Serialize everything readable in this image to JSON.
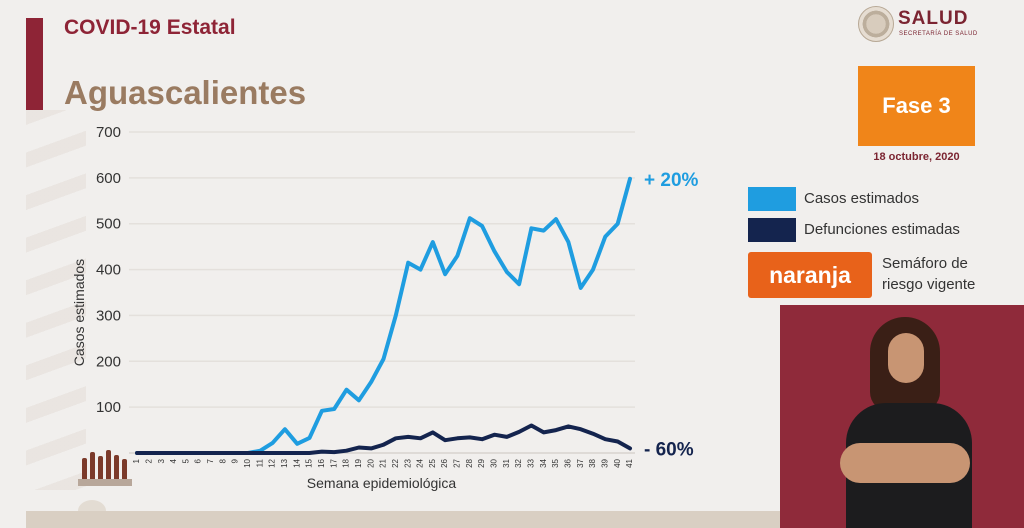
{
  "header": {
    "title": "COVID-19 Estatal",
    "state": "Aguascalientes"
  },
  "logo": {
    "name": "SALUD",
    "subtitle": "SECRETARÍA DE SALUD"
  },
  "phase": {
    "label": "Fase 3",
    "date": "18 octubre, 2020",
    "color": "#f08519"
  },
  "legend": {
    "cases_label": "Casos estimados",
    "deaths_label": "Defunciones estimadas",
    "semaforo_color_label": "naranja",
    "semaforo_text_line1": "Semáforo de",
    "semaforo_text_line2": "riesgo vigente",
    "cases_color": "#1f9de0",
    "deaths_color": "#14244e",
    "semaforo_color": "#e8621a"
  },
  "chart_data": {
    "type": "line",
    "xlabel": "Semana epidemiológica",
    "ylabel": "Casos estimados",
    "ylim": [
      0,
      700
    ],
    "yticks": [
      100,
      200,
      300,
      400,
      500,
      600,
      700
    ],
    "x": [
      1,
      2,
      3,
      4,
      5,
      6,
      7,
      8,
      9,
      10,
      11,
      12,
      13,
      14,
      15,
      16,
      17,
      18,
      19,
      20,
      21,
      22,
      23,
      24,
      25,
      26,
      27,
      28,
      29,
      30,
      31,
      32,
      33,
      34,
      35,
      36,
      37,
      38,
      39,
      40,
      41
    ],
    "grid": true,
    "series": [
      {
        "name": "Casos estimados",
        "color": "#1f9de0",
        "values": [
          0,
          0,
          0,
          0,
          0,
          0,
          0,
          0,
          0,
          0,
          5,
          22,
          52,
          20,
          33,
          92,
          96,
          138,
          115,
          155,
          205,
          300,
          415,
          400,
          460,
          390,
          430,
          512,
          495,
          440,
          395,
          368,
          490,
          485,
          510,
          460,
          360,
          400,
          472,
          500,
          598
        ]
      },
      {
        "name": "Defunciones estimadas",
        "color": "#14244e",
        "values": [
          0,
          0,
          0,
          0,
          0,
          0,
          0,
          0,
          0,
          0,
          0,
          0,
          0,
          0,
          0,
          3,
          2,
          5,
          12,
          10,
          18,
          32,
          35,
          32,
          45,
          28,
          32,
          34,
          30,
          40,
          35,
          46,
          60,
          45,
          50,
          58,
          52,
          42,
          30,
          25,
          10
        ]
      }
    ],
    "annotations": [
      {
        "text": "+ 20%",
        "series": "Casos estimados",
        "color": "#1f9de0"
      },
      {
        "text": "- 60%",
        "series": "Defunciones estimadas",
        "color": "#14244e"
      }
    ]
  }
}
